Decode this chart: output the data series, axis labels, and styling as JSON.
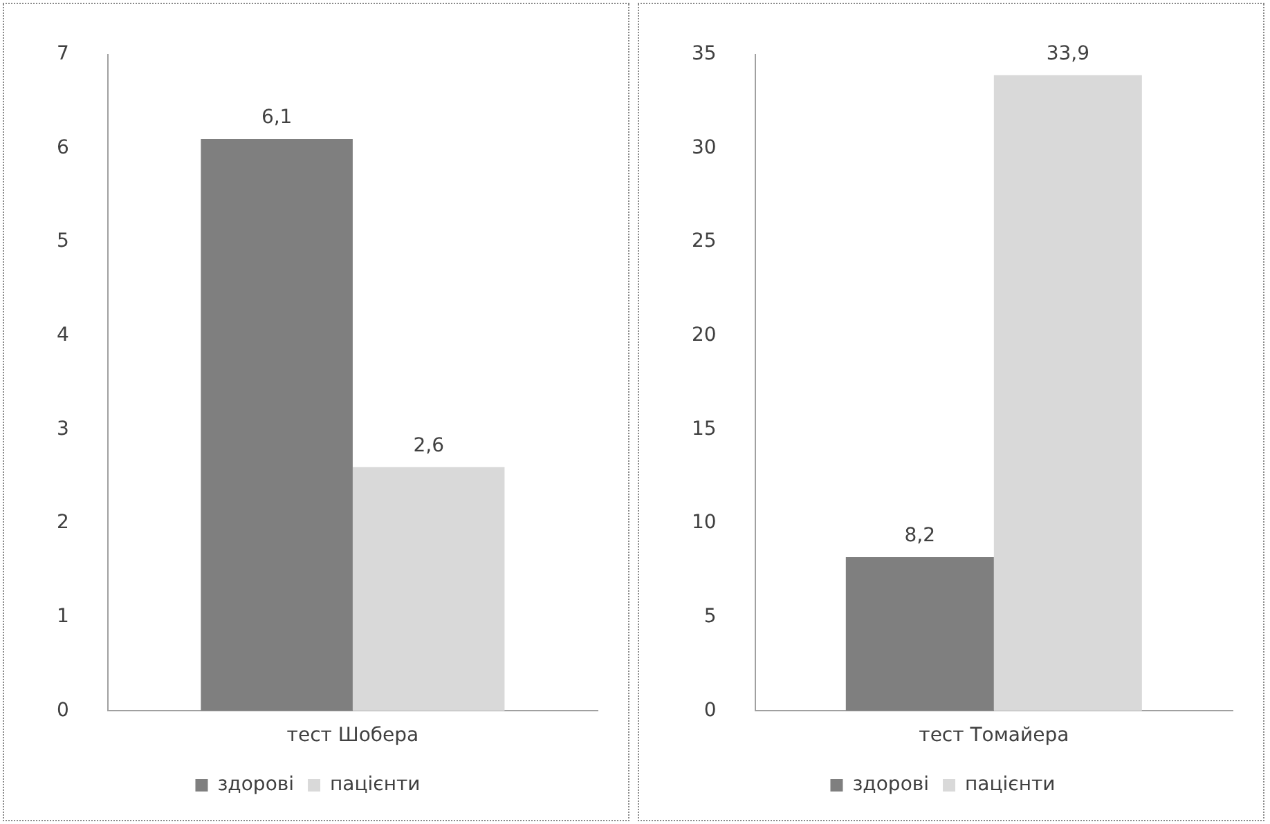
{
  "chart_data": [
    {
      "type": "bar",
      "categories": [
        "тест Шобера"
      ],
      "series": [
        {
          "name": "здорові",
          "color": "#7f7f7f",
          "values": [
            6.1
          ],
          "value_labels": [
            "6,1"
          ]
        },
        {
          "name": "пацієнти",
          "color": "#d9d9d9",
          "values": [
            2.6
          ],
          "value_labels": [
            "2,6"
          ]
        }
      ],
      "ylim": [
        0,
        7
      ],
      "yticks": [
        0,
        1,
        2,
        3,
        4,
        5,
        6,
        7
      ],
      "grid": false,
      "legend": "bottom"
    },
    {
      "type": "bar",
      "categories": [
        "тест Томайера"
      ],
      "series": [
        {
          "name": "здорові",
          "color": "#7f7f7f",
          "values": [
            8.2
          ],
          "value_labels": [
            "8,2"
          ]
        },
        {
          "name": "пацієнти",
          "color": "#d9d9d9",
          "values": [
            33.9
          ],
          "value_labels": [
            "33,9"
          ]
        }
      ],
      "ylim": [
        0,
        35
      ],
      "yticks": [
        0,
        5,
        10,
        15,
        20,
        25,
        30,
        35
      ],
      "grid": false,
      "legend": "bottom"
    }
  ]
}
